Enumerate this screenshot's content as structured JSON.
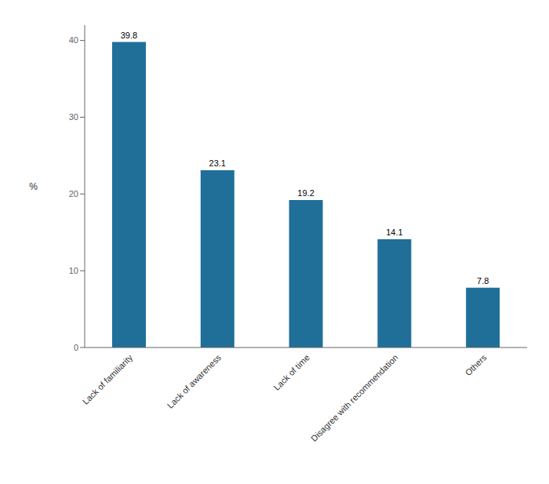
{
  "chart_data": {
    "type": "bar",
    "ylabel": "%",
    "categories": [
      "Lack of familiarity",
      "Lack of awareness",
      "Lack of time",
      "Disagree with recommendation",
      "Others"
    ],
    "values": [
      39.8,
      23.1,
      19.2,
      14.1,
      7.8
    ],
    "color": "#1f6f99",
    "ylim": [
      0,
      42
    ],
    "yticks": [
      0,
      10,
      20,
      30,
      40
    ],
    "grid": false,
    "data_labels": true
  }
}
